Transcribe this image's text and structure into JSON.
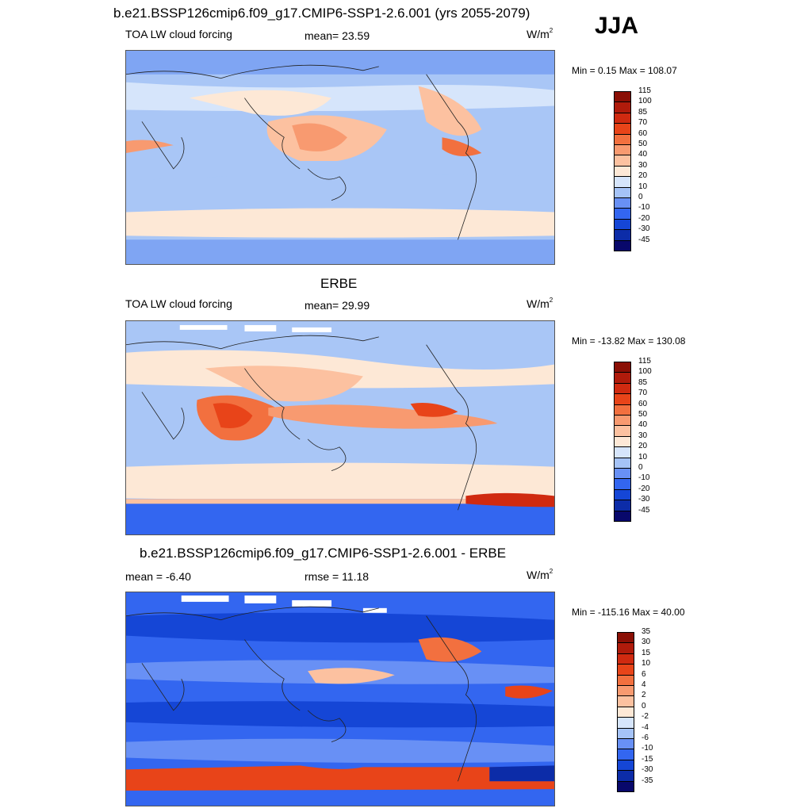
{
  "season": "JJA",
  "panels": [
    {
      "title": "b.e21.BSSP126cmip6.f09_g17.CMIP6-SSP1-2.6.001 (yrs 2055-2079)",
      "left_label": "TOA LW cloud forcing",
      "center_label": "mean=  23.59",
      "units": "W/m",
      "units_sup": "2",
      "minmax": "Min =   0.15 Max = 108.07",
      "colorbar": {
        "colors": [
          "#08086b",
          "#0c2ca8",
          "#1546d6",
          "#3366f0",
          "#6890f5",
          "#a5c3f7",
          "#d6e5fb",
          "#fde8d6",
          "#fcc1a0",
          "#f89a70",
          "#f2703f",
          "#e84419",
          "#d02a10",
          "#b01b0b",
          "#8a0f05"
        ],
        "labels": [
          "-45",
          "-30",
          "-20",
          "-10",
          "0",
          "10",
          "20",
          "30",
          "40",
          "50",
          "60",
          "70",
          "85",
          "100",
          "115"
        ]
      }
    },
    {
      "title": "ERBE",
      "left_label": "TOA LW cloud forcing",
      "center_label": "mean=  29.99",
      "units": "W/m",
      "units_sup": "2",
      "minmax": "Min = -13.82 Max = 130.08",
      "colorbar": {
        "colors": [
          "#08086b",
          "#0c2ca8",
          "#1546d6",
          "#3366f0",
          "#6890f5",
          "#a5c3f7",
          "#d6e5fb",
          "#fde8d6",
          "#fcc1a0",
          "#f89a70",
          "#f2703f",
          "#e84419",
          "#d02a10",
          "#b01b0b",
          "#8a0f05"
        ],
        "labels": [
          "-45",
          "-30",
          "-20",
          "-10",
          "0",
          "10",
          "20",
          "30",
          "40",
          "50",
          "60",
          "70",
          "85",
          "100",
          "115"
        ]
      }
    },
    {
      "title": "b.e21.BSSP126cmip6.f09_g17.CMIP6-SSP1-2.6.001 - ERBE",
      "left_label": "mean =  -6.40",
      "center_label": "rmse =  11.18",
      "units": "W/m",
      "units_sup": "2",
      "minmax": "Min = -115.16 Max =  40.00",
      "colorbar": {
        "colors": [
          "#08086b",
          "#0c2ca8",
          "#1546d6",
          "#3366f0",
          "#6890f5",
          "#a5c3f7",
          "#d6e5fb",
          "#fde8d6",
          "#fcc1a0",
          "#f89a70",
          "#f2703f",
          "#e84419",
          "#d02a10",
          "#b01b0b",
          "#8a0f05"
        ],
        "labels": [
          "-35",
          "-30",
          "-15",
          "-10",
          "-6",
          "-4",
          "-2",
          "0",
          "2",
          "4",
          "6",
          "10",
          "15",
          "30",
          "35"
        ]
      }
    }
  ]
}
